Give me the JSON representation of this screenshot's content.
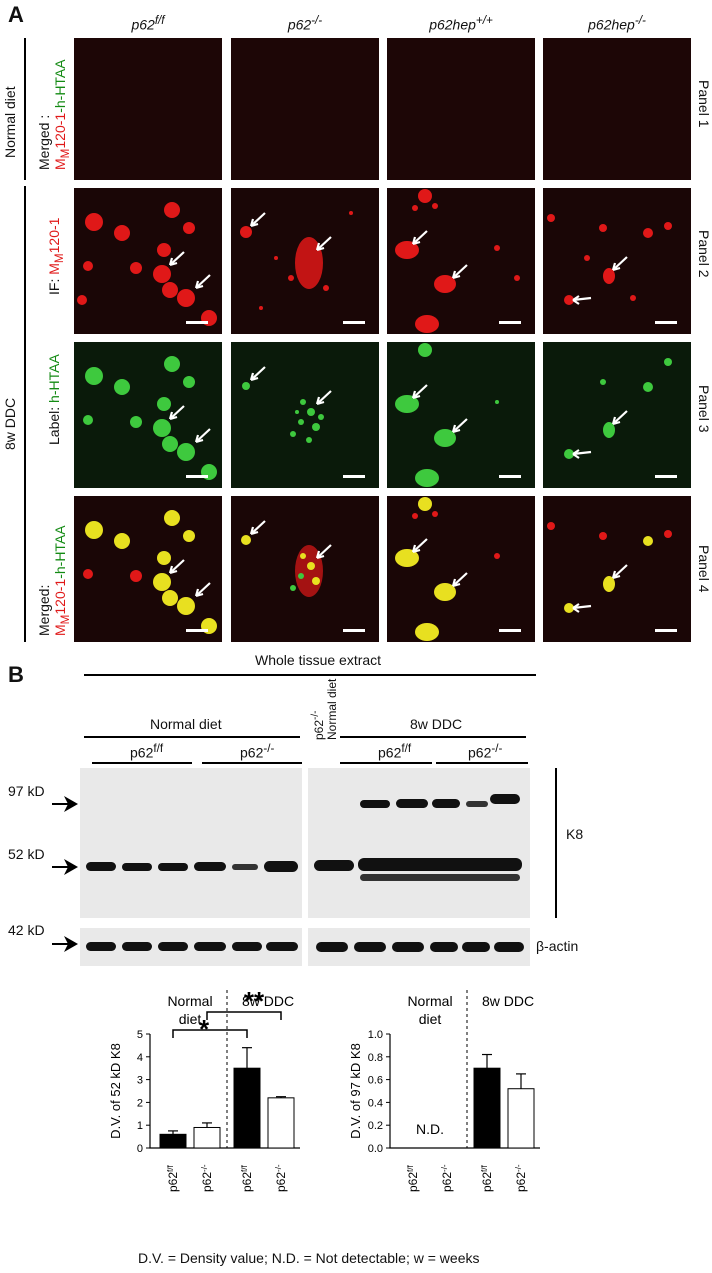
{
  "panelA": {
    "label": "A",
    "columns": [
      "p62f/f",
      "p62-/-",
      "p62hep+/+",
      "p62hep-/-"
    ],
    "groups": {
      "normal": "Normal diet",
      "ddc": "8w DDC"
    },
    "rows": [
      {
        "prefix": "Merged :",
        "red": "MM120-1",
        "green": "-h-HTAA",
        "panel": "Panel 1"
      },
      {
        "prefix": "IF: ",
        "red": "MM120-1",
        "green": "",
        "panel": "Panel 2"
      },
      {
        "prefix": "Label: ",
        "red": "",
        "green": "h-HTAA",
        "panel": "Panel 3"
      },
      {
        "prefix": "Merged:",
        "red": "MM120-1",
        "green": "-h-HTAA",
        "panel": "Panel 4"
      }
    ]
  },
  "panelB": {
    "label": "B",
    "header": "Whole tissue extract",
    "normal_diet": "Normal diet",
    "ddc": "8w DDC",
    "ko_normal_a": "p62-/-",
    "ko_normal_b": "Normal diet",
    "geno_ff": "p62f/f",
    "geno_ko": "p62-/-",
    "markers": [
      "97 kD",
      "52 kD",
      "42 kD"
    ],
    "k8": "K8",
    "actin": "β-actin"
  },
  "chart_data": [
    {
      "type": "bar",
      "categories": [
        "p62f/f",
        "p62-/-",
        "p62f/f",
        "p62-/-"
      ],
      "values": [
        0.6,
        0.9,
        3.5,
        2.2
      ],
      "errors": [
        0.15,
        0.2,
        0.9,
        0.05
      ],
      "fills": [
        "#000000",
        "#ffffff",
        "#000000",
        "#ffffff"
      ],
      "ylabel": "D.V. of 52 kD K8",
      "ylim": [
        0,
        5
      ],
      "yticks": [
        0,
        1,
        2,
        3,
        4,
        5
      ],
      "group_labels": [
        "Normal diet",
        "8w DDC"
      ],
      "annotations": [
        "*",
        "**"
      ]
    },
    {
      "type": "bar",
      "categories": [
        "p62f/f",
        "p62-/-",
        "p62f/f",
        "p62-/-"
      ],
      "values": [
        0,
        0,
        0.7,
        0.52
      ],
      "errors": [
        0,
        0,
        0.12,
        0.13
      ],
      "fills": [
        "#000000",
        "#ffffff",
        "#000000",
        "#ffffff"
      ],
      "ylabel": "D.V. of 97 kD K8",
      "ylim": [
        0,
        1.0
      ],
      "yticks": [
        0.0,
        0.2,
        0.4,
        0.6,
        0.8,
        1.0
      ],
      "group_labels": [
        "Normal diet",
        "8w DDC"
      ],
      "annotations": [
        "N.D."
      ]
    }
  ],
  "footnote": "D.V. = Density value; N.D. = Not detectable; w = weeks"
}
